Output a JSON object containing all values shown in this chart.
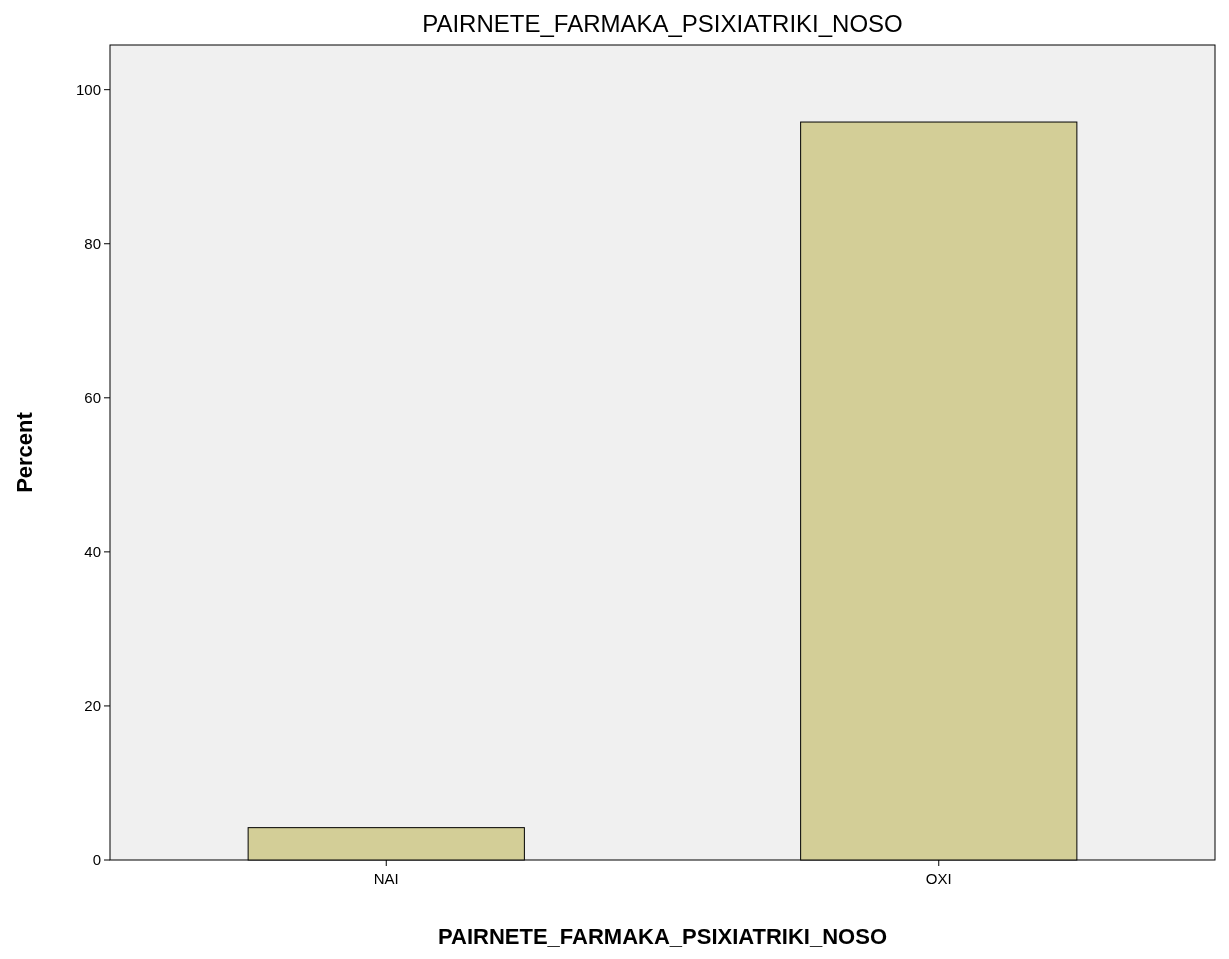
{
  "chart_data": {
    "type": "bar",
    "title": "PAIRNETE_FARMAKA_PSIXIATRIKI_NOSO",
    "xlabel": "PAIRNETE_FARMAKA_PSIXIATRIKI_NOSO",
    "ylabel": "Percent",
    "categories": [
      "NAI",
      "OXI"
    ],
    "values": [
      4.2,
      95.8
    ],
    "color": "#d3ce97",
    "ylim": [
      0,
      105.8
    ],
    "yticks": [
      0,
      20,
      40,
      60,
      80,
      100
    ],
    "grid": false
  }
}
